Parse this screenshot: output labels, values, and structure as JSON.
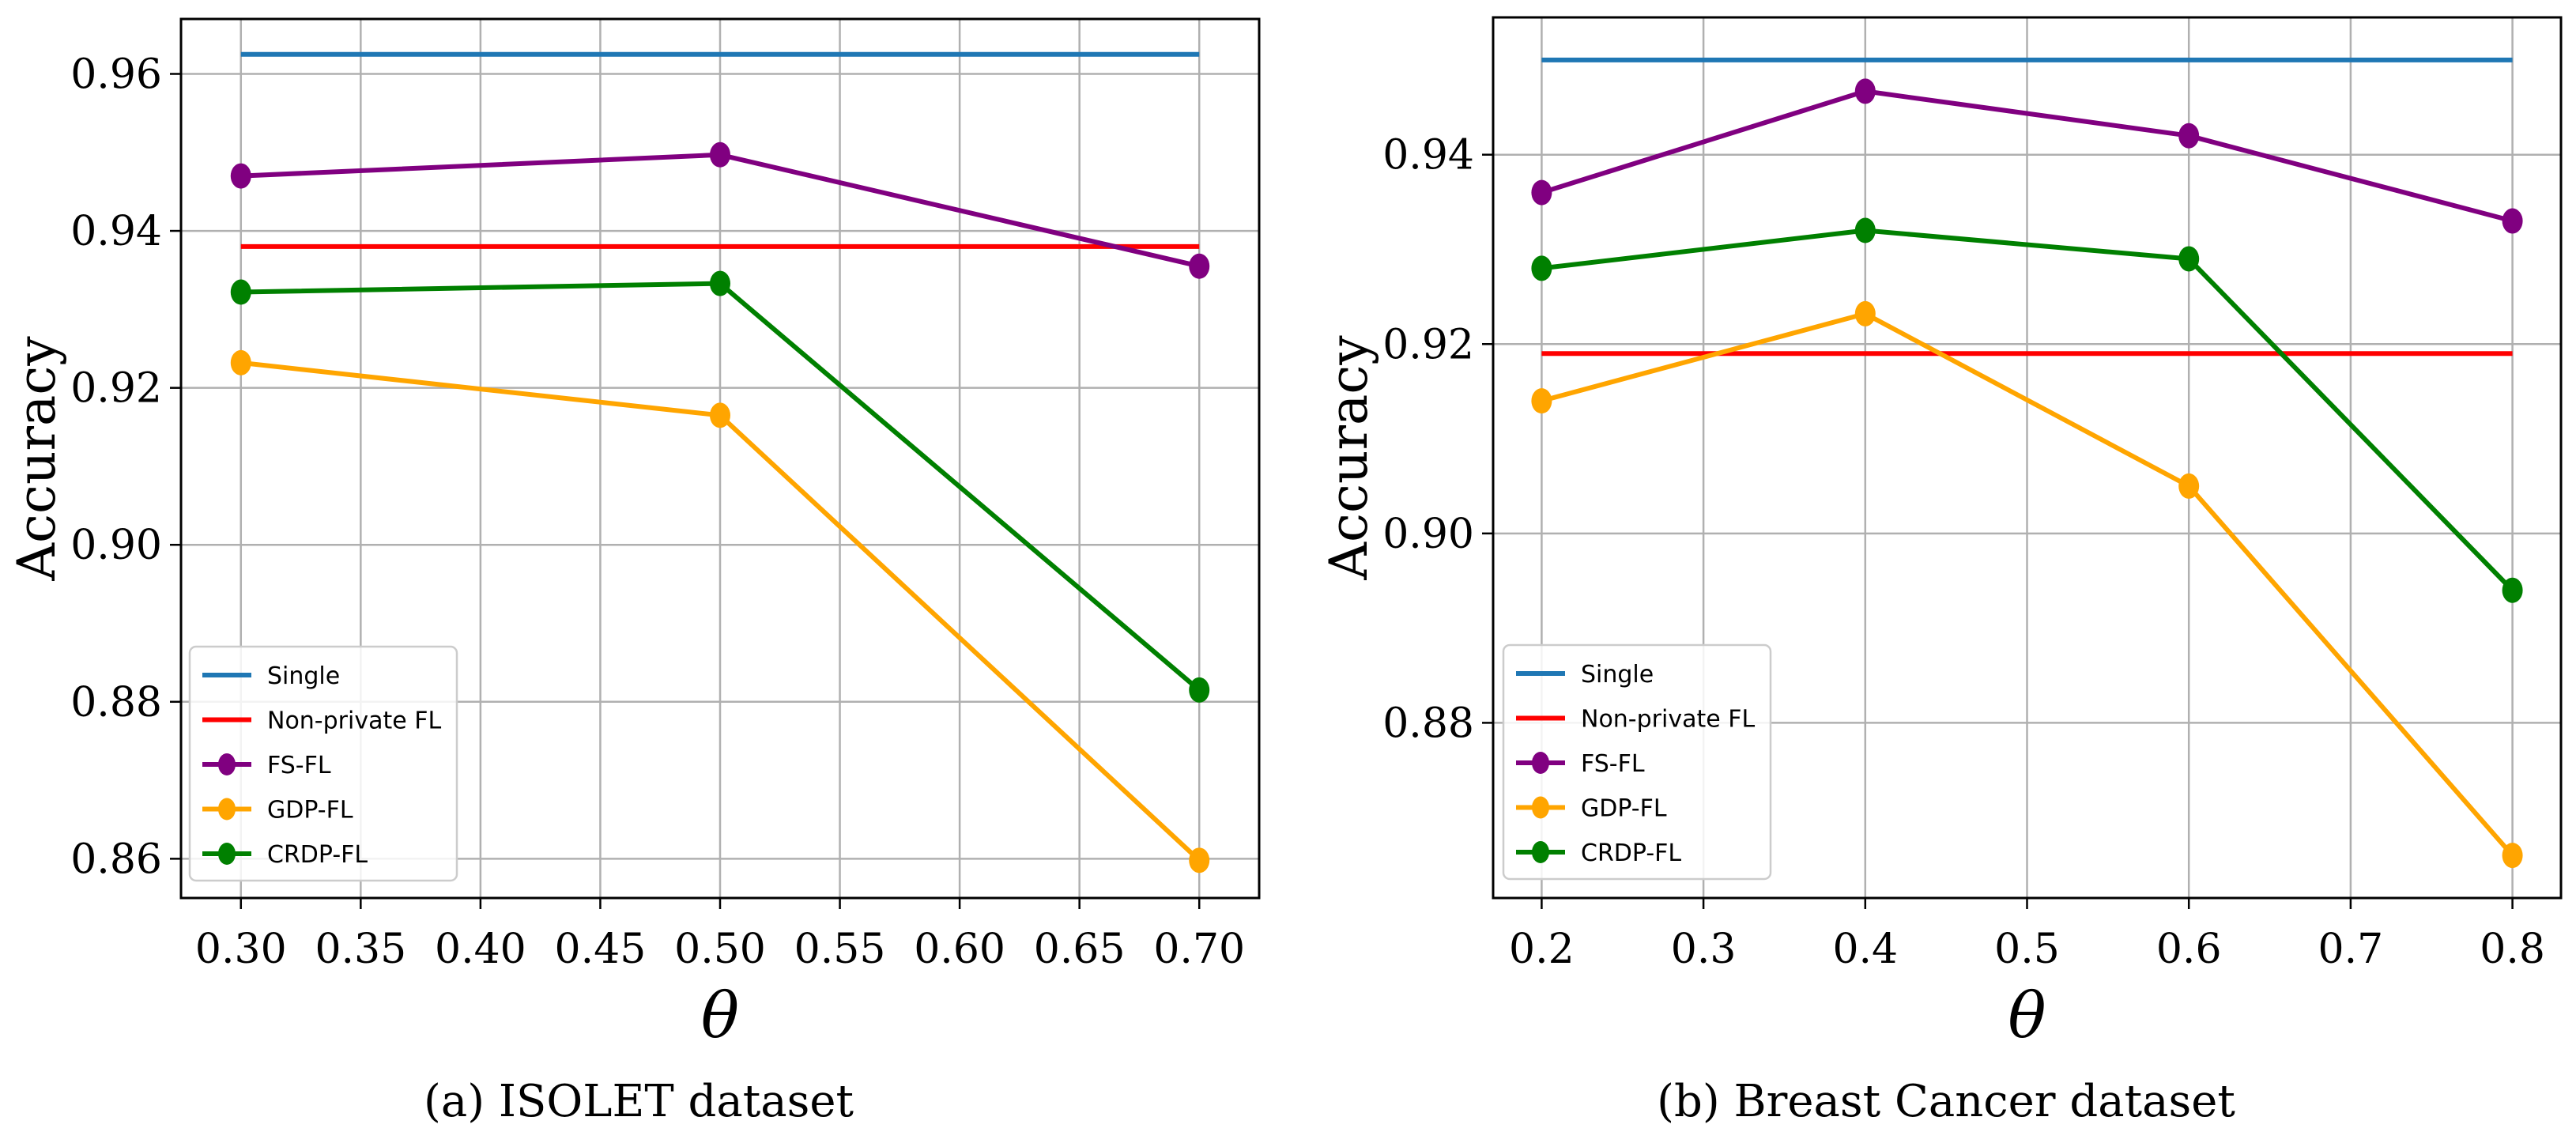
{
  "figure": {
    "legend_entries": [
      "Single",
      "Non-private FL",
      "FS-FL",
      "GDP-FL",
      "CRDP-FL"
    ],
    "series_colors": {
      "Single": "#1f77b4",
      "Non-private FL": "#ff0000",
      "FS-FL": "#800080",
      "GDP-FL": "#ffa500",
      "CRDP-FL": "#008000"
    }
  },
  "chart_data": [
    {
      "type": "line",
      "caption": "(a)  ISOLET dataset",
      "xlabel": "θ",
      "ylabel": "Accuracy",
      "xlim": [
        0.275,
        0.725
      ],
      "ylim": [
        0.855,
        0.967
      ],
      "xticks": [
        0.3,
        0.35,
        0.4,
        0.45,
        0.5,
        0.55,
        0.6,
        0.65,
        0.7
      ],
      "xtick_labels": [
        "0.30",
        "0.35",
        "0.40",
        "0.45",
        "0.50",
        "0.55",
        "0.60",
        "0.65",
        "0.70"
      ],
      "yticks": [
        0.86,
        0.88,
        0.9,
        0.92,
        0.94,
        0.96
      ],
      "ytick_labels": [
        "0.86",
        "0.88",
        "0.90",
        "0.92",
        "0.94",
        "0.96"
      ],
      "grid": true,
      "legend_position": "lower-left",
      "x": [
        0.3,
        0.5,
        0.7
      ],
      "series": [
        {
          "name": "Single",
          "values": [
            0.9625,
            0.9625,
            0.9625
          ],
          "markers": false
        },
        {
          "name": "Non-private FL",
          "values": [
            0.938,
            0.938,
            0.938
          ],
          "markers": false
        },
        {
          "name": "FS-FL",
          "values": [
            0.947,
            0.9497,
            0.9355
          ],
          "markers": true
        },
        {
          "name": "GDP-FL",
          "values": [
            0.9232,
            0.9165,
            0.8598
          ],
          "markers": true
        },
        {
          "name": "CRDP-FL",
          "values": [
            0.9322,
            0.9333,
            0.8815
          ],
          "markers": true
        }
      ]
    },
    {
      "type": "line",
      "caption": "(b)  Breast Cancer dataset",
      "xlabel": "θ",
      "ylabel": "Accuracy",
      "xlim": [
        0.17,
        0.83
      ],
      "ylim": [
        0.8615,
        0.9545
      ],
      "xticks": [
        0.2,
        0.3,
        0.4,
        0.5,
        0.6,
        0.7,
        0.8
      ],
      "xtick_labels": [
        "0.2",
        "0.3",
        "0.4",
        "0.5",
        "0.6",
        "0.7",
        "0.8"
      ],
      "yticks": [
        0.88,
        0.9,
        0.92,
        0.94
      ],
      "ytick_labels": [
        "0.88",
        "0.90",
        "0.92",
        "0.94"
      ],
      "grid": true,
      "legend_position": "lower-left",
      "x": [
        0.2,
        0.4,
        0.6,
        0.8
      ],
      "series": [
        {
          "name": "Single",
          "values": [
            0.95,
            0.95,
            0.95,
            0.95
          ],
          "markers": false
        },
        {
          "name": "Non-private FL",
          "values": [
            0.919,
            0.919,
            0.919,
            0.919
          ],
          "markers": false
        },
        {
          "name": "FS-FL",
          "values": [
            0.936,
            0.9467,
            0.942,
            0.933
          ],
          "markers": true
        },
        {
          "name": "GDP-FL",
          "values": [
            0.914,
            0.9232,
            0.905,
            0.866
          ],
          "markers": true
        },
        {
          "name": "CRDP-FL",
          "values": [
            0.928,
            0.932,
            0.929,
            0.894
          ],
          "markers": true
        }
      ]
    }
  ]
}
